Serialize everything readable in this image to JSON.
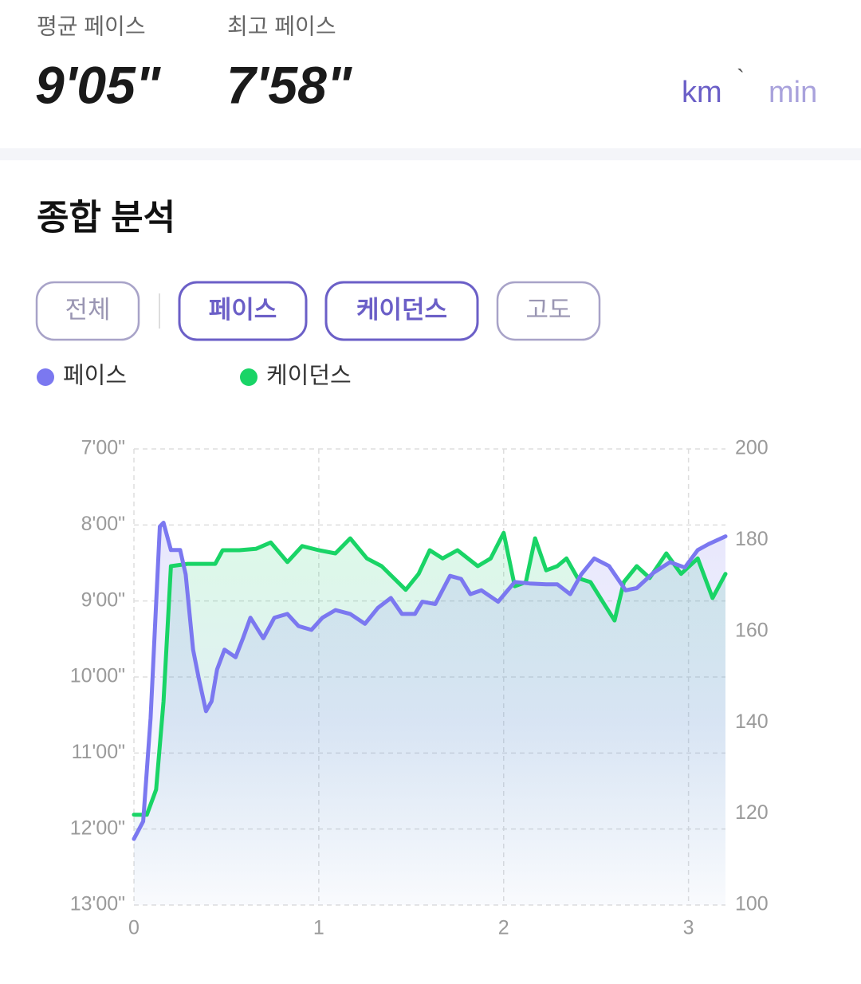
{
  "header": {
    "stats": [
      {
        "label": "평균 페이스",
        "value": "9'05\""
      },
      {
        "label": "최고 페이스",
        "value": "7'58\""
      }
    ],
    "units": [
      "km",
      "min"
    ],
    "separator": "`"
  },
  "section_title": "종합 분석",
  "tabs": [
    {
      "label": "전체",
      "active": false
    },
    {
      "label": "페이스",
      "active": true
    },
    {
      "label": "케이던스",
      "active": true
    },
    {
      "label": "고도",
      "active": false
    }
  ],
  "chart_data": {
    "type": "line",
    "xlim": [
      0,
      3.2
    ],
    "xticks": [
      0,
      1,
      2,
      3
    ],
    "ylim": [
      13,
      7
    ],
    "yticks": [
      {
        "value": 13,
        "label": "13'00\""
      },
      {
        "value": 12,
        "label": "12'00\""
      },
      {
        "value": 11,
        "label": "11'00\""
      },
      {
        "value": 10,
        "label": "10'00\""
      },
      {
        "value": 9,
        "label": "9'00\""
      },
      {
        "value": 8,
        "label": "8'00\""
      },
      {
        "value": 7,
        "label": "7'00\""
      }
    ],
    "y2lim": [
      100,
      200
    ],
    "y2ticks": [
      100,
      120,
      140,
      160,
      180,
      200
    ],
    "grid": true,
    "series": [
      {
        "name": "페이스",
        "color": "#7b78f0",
        "x": [
          0,
          0.05,
          0.09,
          0.14,
          0.16,
          0.2,
          0.25,
          0.28,
          0.32,
          0.35,
          0.39,
          0.42,
          0.45,
          0.49,
          0.55,
          0.59,
          0.63,
          0.7,
          0.76,
          0.83,
          0.89,
          0.96,
          1.02,
          1.09,
          1.17,
          1.25,
          1.32,
          1.39,
          1.45,
          1.52,
          1.56,
          1.63,
          1.71,
          1.77,
          1.82,
          1.88,
          1.97,
          2.06,
          2.14,
          2.23,
          2.29,
          2.36,
          2.42,
          2.49,
          2.57,
          2.66,
          2.72,
          2.81,
          2.9,
          2.98,
          3.05,
          3.11,
          3.2
        ],
        "values": [
          12.13,
          11.9,
          10.54,
          8.02,
          7.97,
          8.33,
          8.33,
          8.65,
          9.64,
          10.01,
          10.45,
          10.32,
          9.9,
          9.64,
          9.74,
          9.49,
          9.22,
          9.49,
          9.22,
          9.17,
          9.33,
          9.38,
          9.22,
          9.12,
          9.17,
          9.3,
          9.09,
          8.96,
          9.17,
          9.17,
          9.01,
          9.04,
          8.67,
          8.71,
          8.91,
          8.86,
          9.01,
          8.75,
          8.77,
          8.78,
          8.78,
          8.91,
          8.65,
          8.44,
          8.54,
          8.86,
          8.83,
          8.63,
          8.49,
          8.56,
          8.33,
          8.25,
          8.15
        ]
      },
      {
        "name": "케이던스",
        "color": "#19d466",
        "axis": "y2",
        "x": [
          0,
          0.07,
          0.12,
          0.16,
          0.2,
          0.29,
          0.44,
          0.48,
          0.57,
          0.66,
          0.74,
          0.83,
          0.91,
          1,
          1.09,
          1.17,
          1.26,
          1.34,
          1.47,
          1.54,
          1.6,
          1.67,
          1.75,
          1.86,
          1.93,
          2,
          2.06,
          2.12,
          2.17,
          2.23,
          2.29,
          2.34,
          2.4,
          2.47,
          2.55,
          2.6,
          2.65,
          2.72,
          2.79,
          2.88,
          2.96,
          3.05,
          3.13,
          3.2
        ],
        "values": [
          119.8,
          119.8,
          125.3,
          144.6,
          174.3,
          174.8,
          174.8,
          177.8,
          177.8,
          178.1,
          179.5,
          175.2,
          178.7,
          177.8,
          177.1,
          180.4,
          176,
          174.3,
          169.1,
          172.6,
          177.8,
          176,
          177.8,
          174.3,
          176,
          181.6,
          169.9,
          170.8,
          180.4,
          173.4,
          174.3,
          176,
          171.7,
          170.8,
          165.6,
          162.4,
          170.8,
          174.3,
          171.7,
          177.1,
          172.6,
          176,
          167.3,
          172.6
        ]
      }
    ]
  }
}
